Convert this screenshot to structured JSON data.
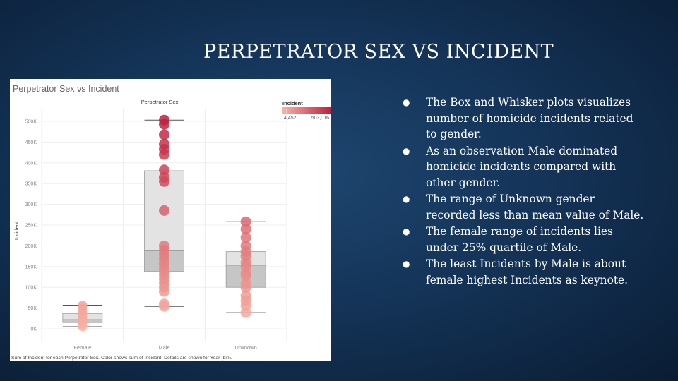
{
  "slide": {
    "title": "PERPETRATOR SEX VS INCIDENT",
    "bullets": [
      "The Box and Whisker plots visualizes number of homicide incidents related to gender.",
      "As an observation Male dominated homicide incidents compared with other gender.",
      "The range of Unknown gender recorded less than mean value of Male.",
      "The female range of incidents lies under 25% quartile of Male.",
      "The least Incidents by Male is about female highest Incidents as keynote."
    ]
  },
  "chart_data": {
    "type": "box",
    "title": "Perpetrator Sex vs Incident",
    "column_header": "Perpetrator Sex",
    "ylabel": "Incident",
    "categories": [
      "Female",
      "Male",
      "Unknown"
    ],
    "ylim": [
      0,
      520000
    ],
    "yticks": [
      0,
      50000,
      100000,
      150000,
      200000,
      250000,
      300000,
      350000,
      400000,
      450000,
      500000
    ],
    "ytick_labels": [
      "0K",
      "50K",
      "100K",
      "150K",
      "200K",
      "250K",
      "300K",
      "350K",
      "400K",
      "450K",
      "500K"
    ],
    "boxes": [
      {
        "category": "Female",
        "min": 5000,
        "q1": 15000,
        "median": 22000,
        "q3": 37000,
        "max": 57000
      },
      {
        "category": "Male",
        "min": 54000,
        "q1": 138000,
        "median": 188000,
        "q3": 381000,
        "max": 503000
      },
      {
        "category": "Unknown",
        "min": 39000,
        "q1": 100000,
        "median": 153000,
        "q3": 186000,
        "max": 258000
      }
    ],
    "points": [
      {
        "category": "Female",
        "values": [
          5000,
          10000,
          15000,
          20000,
          25000,
          30000,
          35000,
          42000,
          50000,
          57000
        ]
      },
      {
        "category": "Male",
        "values": [
          54000,
          60000,
          90000,
          100000,
          110000,
          120000,
          130000,
          138000,
          145000,
          155000,
          160000,
          170000,
          180000,
          190000,
          200000,
          285000,
          355000,
          365000,
          383000,
          420000,
          433000,
          445000,
          468000,
          493000,
          503000
        ]
      },
      {
        "category": "Unknown",
        "values": [
          39000,
          55000,
          68000,
          80000,
          100000,
          110000,
          128000,
          135000,
          150000,
          160000,
          175000,
          186000,
          200000,
          220000,
          240000,
          258000
        ]
      }
    ],
    "grid": true,
    "legend": {
      "title": "Incident",
      "min_label": "4,452",
      "max_label": "503,016",
      "min_value": 4452,
      "max_value": 503016,
      "placement": "top-right",
      "color_low": "#f7b3a6",
      "color_high": "#c0213e"
    },
    "footnote": "Sum of Incident for each Perpetrator Sex.  Color shows sum of Incident.  Details are shown for Year (bin)."
  }
}
